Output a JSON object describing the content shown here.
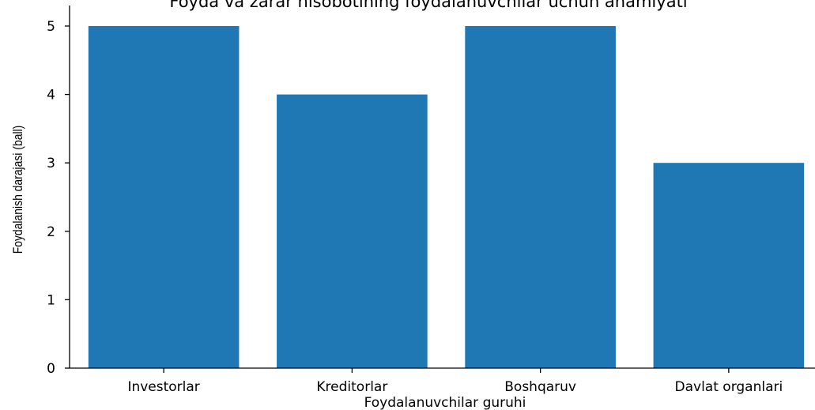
{
  "chart_data": {
    "type": "bar",
    "title": "Foyda va zarar hisobotining foydalanuvchilar uchun ahamiyati",
    "xlabel": "Foydalanuvchilar guruhi",
    "ylabel": "Foydalanish darajasi (ball)",
    "categories": [
      "Investorlar",
      "Kreditorlar",
      "Boshqaruv",
      "Davlat organlari"
    ],
    "values": [
      5,
      4,
      5,
      3
    ],
    "ylim": [
      0,
      5.3
    ],
    "yticks": [
      0,
      1,
      2,
      3,
      4,
      5
    ],
    "bar_color": "#1f77b4",
    "grid": false
  }
}
